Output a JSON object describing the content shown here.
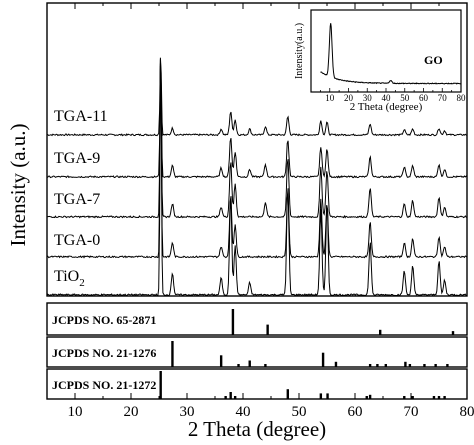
{
  "chart_data": [
    {
      "type": "line",
      "xlabel": "2 Theta (degree)",
      "ylabel": "Intensity  (a.u.)",
      "xlim": [
        5,
        80
      ],
      "x_ticks": [
        10,
        20,
        30,
        40,
        50,
        60,
        70,
        80
      ],
      "grid": false,
      "series": [
        {
          "name": "TGA-11",
          "peaks": [
            [
              25.3,
              1.0
            ],
            [
              27.4,
              0.08
            ],
            [
              36.1,
              0.07
            ],
            [
              37.8,
              0.28
            ],
            [
              38.6,
              0.18
            ],
            [
              41.2,
              0.07
            ],
            [
              44.0,
              0.1
            ],
            [
              48.0,
              0.22
            ],
            [
              53.9,
              0.17
            ],
            [
              55.0,
              0.15
            ],
            [
              62.7,
              0.13
            ],
            [
              68.8,
              0.06
            ],
            [
              70.3,
              0.07
            ],
            [
              75.0,
              0.08
            ],
            [
              76.0,
              0.05
            ]
          ]
        },
        {
          "name": "TGA-9",
          "peaks": [
            [
              25.3,
              1.0
            ],
            [
              27.4,
              0.09
            ],
            [
              36.1,
              0.07
            ],
            [
              37.8,
              0.32
            ],
            [
              38.6,
              0.2
            ],
            [
              41.2,
              0.06
            ],
            [
              44.0,
              0.1
            ],
            [
              48.0,
              0.3
            ],
            [
              53.9,
              0.24
            ],
            [
              55.0,
              0.22
            ],
            [
              62.7,
              0.16
            ],
            [
              68.8,
              0.08
            ],
            [
              70.3,
              0.09
            ],
            [
              75.0,
              0.1
            ],
            [
              76.0,
              0.06
            ]
          ]
        },
        {
          "name": "TGA-7",
          "peaks": [
            [
              25.3,
              1.0
            ],
            [
              27.4,
              0.08
            ],
            [
              36.1,
              0.06
            ],
            [
              37.8,
              0.34
            ],
            [
              38.6,
              0.2
            ],
            [
              44.0,
              0.09
            ],
            [
              48.0,
              0.36
            ],
            [
              53.9,
              0.3
            ],
            [
              55.0,
              0.28
            ],
            [
              62.7,
              0.18
            ],
            [
              68.8,
              0.08
            ],
            [
              70.3,
              0.1
            ],
            [
              75.0,
              0.12
            ],
            [
              76.0,
              0.06
            ]
          ]
        },
        {
          "name": "TGA-0",
          "peaks": [
            [
              25.3,
              1.0
            ],
            [
              27.4,
              0.07
            ],
            [
              36.1,
              0.05
            ],
            [
              37.8,
              0.3
            ],
            [
              38.6,
              0.16
            ],
            [
              48.0,
              0.32
            ],
            [
              53.9,
              0.28
            ],
            [
              55.0,
              0.26
            ],
            [
              62.7,
              0.17
            ],
            [
              68.8,
              0.07
            ],
            [
              70.3,
              0.09
            ],
            [
              75.0,
              0.1
            ],
            [
              76.0,
              0.05
            ]
          ]
        },
        {
          "name": "TiO2",
          "peaks": [
            [
              25.3,
              1.0
            ],
            [
              27.4,
              0.09
            ],
            [
              36.1,
              0.07
            ],
            [
              37.8,
              0.4
            ],
            [
              38.6,
              0.2
            ],
            [
              41.2,
              0.05
            ],
            [
              48.0,
              0.45
            ],
            [
              53.9,
              0.35
            ],
            [
              55.0,
              0.38
            ],
            [
              62.7,
              0.22
            ],
            [
              68.8,
              0.1
            ],
            [
              70.3,
              0.12
            ],
            [
              75.0,
              0.14
            ],
            [
              76.0,
              0.06
            ]
          ]
        }
      ],
      "reference_patterns": [
        {
          "name": "JCPDS NO. 65-2871",
          "lines": [
            [
              38.2,
              1.0
            ],
            [
              44.4,
              0.4
            ],
            [
              64.5,
              0.2
            ],
            [
              77.5,
              0.15
            ]
          ]
        },
        {
          "name": "JCPDS NO. 21-1276",
          "lines": [
            [
              27.4,
              1.0
            ],
            [
              36.1,
              0.45
            ],
            [
              39.2,
              0.1
            ],
            [
              41.2,
              0.25
            ],
            [
              44.0,
              0.08
            ],
            [
              54.3,
              0.55
            ],
            [
              56.6,
              0.2
            ],
            [
              62.7,
              0.1
            ],
            [
              64.0,
              0.1
            ],
            [
              65.5,
              0.1
            ],
            [
              69.0,
              0.2
            ],
            [
              69.8,
              0.1
            ],
            [
              72.4,
              0.05
            ],
            [
              74.4,
              0.05
            ],
            [
              76.5,
              0.05
            ]
          ]
        },
        {
          "name": "JCPDS NO. 21-1272",
          "lines": [
            [
              25.3,
              1.0
            ],
            [
              36.9,
              0.1
            ],
            [
              37.8,
              0.25
            ],
            [
              38.6,
              0.1
            ],
            [
              48.0,
              0.35
            ],
            [
              53.9,
              0.2
            ],
            [
              55.1,
              0.2
            ],
            [
              62.1,
              0.05
            ],
            [
              62.7,
              0.15
            ],
            [
              68.8,
              0.08
            ],
            [
              70.3,
              0.08
            ],
            [
              74.1,
              0.05
            ],
            [
              75.0,
              0.1
            ],
            [
              76.0,
              0.05
            ]
          ]
        }
      ]
    },
    {
      "type": "line",
      "title": "GO",
      "xlabel": "2 Theta (degree)",
      "ylabel": "Intensity(a.u.)",
      "xlim": [
        0,
        80
      ],
      "x_ticks": [
        10,
        20,
        30,
        40,
        50,
        60,
        70,
        80
      ],
      "grid": false,
      "series": [
        {
          "name": "GO",
          "peaks": [
            [
              10.5,
              1.0
            ],
            [
              42.5,
              0.05
            ]
          ]
        }
      ]
    }
  ]
}
